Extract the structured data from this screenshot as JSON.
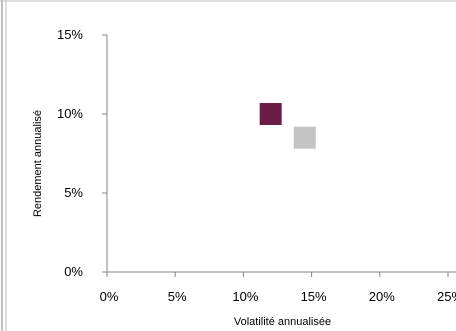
{
  "chart_data": {
    "type": "scatter",
    "title": "",
    "xlabel": "Volatilité annualisée",
    "ylabel": "Rendement annualisé",
    "xlim": [
      0,
      25
    ],
    "ylim": [
      0,
      15
    ],
    "x_ticks": [
      "0%",
      "5%",
      "10%",
      "15%",
      "20%",
      "25%"
    ],
    "y_ticks": [
      "0%",
      "5%",
      "10%",
      "15%"
    ],
    "grid": false,
    "series": [
      {
        "color": "#6b1d46",
        "marker": "square",
        "points": [
          {
            "x": 12.0,
            "y": 10.0
          }
        ]
      },
      {
        "color": "#c4c4c4",
        "marker": "square",
        "points": [
          {
            "x": 14.5,
            "y": 8.5
          }
        ]
      }
    ]
  }
}
